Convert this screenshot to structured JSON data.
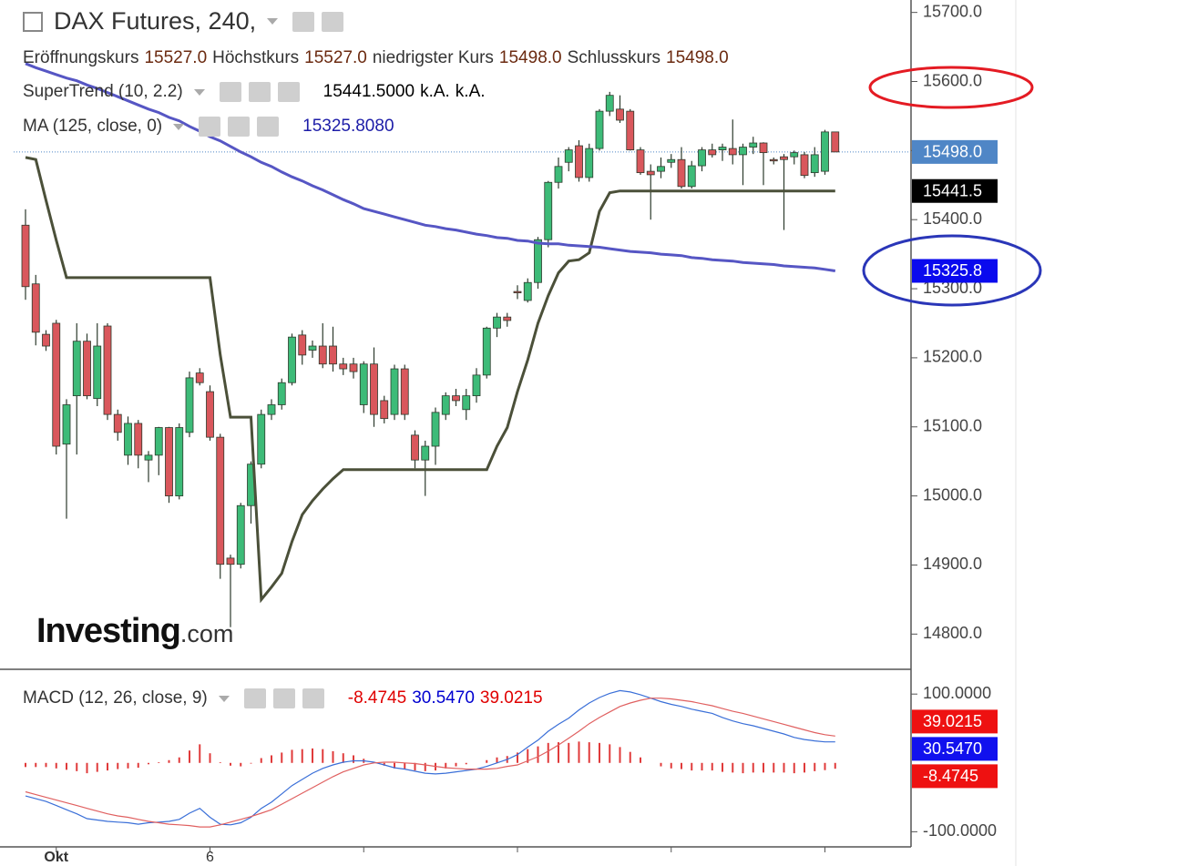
{
  "header": {
    "title": "DAX Futures, 240,",
    "ohlc": [
      {
        "label": "Eröffnungskurs",
        "value": "15527.0"
      },
      {
        "label": "Höchstkurs",
        "value": "15527.0"
      },
      {
        "label": "niedrigster Kurs",
        "value": "15498.0"
      },
      {
        "label": "Schlusskurs",
        "value": "15498.0"
      }
    ],
    "logo": {
      "name": "Investing",
      "suffix": ".com"
    }
  },
  "chart_data": [
    {
      "type": "candlestick",
      "up_color": "#3dbb78",
      "down_color": "#d9575c",
      "categories": [
        null,
        null,
        null,
        "Okt",
        null,
        null,
        null,
        null,
        null,
        null,
        null,
        null,
        null,
        null,
        null,
        null,
        null,
        null,
        "6",
        null,
        null,
        null,
        null,
        null,
        null,
        null,
        null,
        null,
        null,
        null,
        null,
        null,
        null,
        null,
        null,
        null,
        null,
        null,
        null,
        null,
        null,
        null,
        null,
        null,
        null,
        null,
        null,
        null,
        null,
        null,
        null,
        null,
        null,
        null,
        null,
        null,
        null,
        null,
        null,
        null,
        null,
        null,
        null,
        null,
        null,
        null,
        null,
        null,
        null,
        null,
        null,
        null,
        null,
        null,
        null,
        null,
        null,
        null,
        null,
        null
      ],
      "open": [
        15392,
        15307,
        15234,
        15250,
        15075,
        15145,
        15224,
        15141,
        15246,
        15118,
        15059,
        15105,
        15052,
        15059,
        15099,
        15000,
        15092,
        15178,
        15151,
        15085,
        14910,
        14901,
        14986,
        15046,
        15118,
        15132,
        15164,
        15233,
        15211,
        15217,
        15217,
        15191,
        15191,
        15132,
        15191,
        15138,
        15118,
        15184,
        15088,
        15052,
        15072,
        15118,
        15145,
        15125,
        15145,
        15175,
        15243,
        15259,
        15296,
        15283,
        15309,
        15371,
        15454,
        15483,
        15507,
        15461,
        15503,
        15557,
        15560,
        15557,
        15501,
        15470,
        15470,
        15483,
        15487,
        15448,
        15478,
        15501,
        15501,
        15503,
        15494,
        15505,
        15511,
        15487,
        15491,
        15491,
        15494,
        15468,
        15470,
        15527
      ],
      "high": [
        15415,
        15320,
        15240,
        15255,
        15140,
        15250,
        15235,
        15250,
        15250,
        15125,
        15115,
        15110,
        15065,
        15100,
        15100,
        15105,
        15180,
        15185,
        15160,
        15090,
        14915,
        14990,
        15050,
        15125,
        15140,
        15170,
        15235,
        15240,
        15225,
        15250,
        15245,
        15200,
        15200,
        15195,
        15215,
        15145,
        15190,
        15190,
        15095,
        15080,
        15128,
        15150,
        15155,
        15155,
        15185,
        15245,
        15265,
        15265,
        15305,
        15315,
        15375,
        15456,
        15490,
        15505,
        15515,
        15510,
        15560,
        15585,
        15580,
        15560,
        15505,
        15480,
        15490,
        15495,
        15505,
        15485,
        15505,
        15510,
        15510,
        15545,
        15510,
        15520,
        15512,
        15490,
        15495,
        15500,
        15498,
        15505,
        15530,
        15527
      ],
      "low": [
        15284,
        15218,
        15210,
        15060,
        14967,
        15060,
        15140,
        15130,
        15110,
        15080,
        15045,
        15040,
        15020,
        15030,
        14990,
        14995,
        15085,
        15160,
        15080,
        14880,
        14810,
        14895,
        14960,
        15040,
        15110,
        15125,
        15160,
        15190,
        15200,
        15185,
        15180,
        15175,
        15170,
        15120,
        15100,
        15105,
        15110,
        15110,
        15040,
        15000,
        15045,
        15110,
        15130,
        15110,
        15135,
        15170,
        15230,
        15245,
        15285,
        15280,
        15300,
        15360,
        15445,
        15470,
        15455,
        15455,
        15500,
        15550,
        15540,
        15500,
        15465,
        15400,
        15460,
        15475,
        15445,
        15445,
        15470,
        15490,
        15485,
        15480,
        15450,
        15495,
        15450,
        15480,
        15385,
        15480,
        15460,
        15462,
        15465,
        15498
      ],
      "close": [
        15303,
        15237,
        15217,
        15072,
        15132,
        15224,
        15145,
        15217,
        15118,
        15092,
        15105,
        15059,
        15059,
        15099,
        15000,
        15099,
        15171,
        15164,
        15085,
        14901,
        14901,
        14986,
        15046,
        15118,
        15132,
        15164,
        15230,
        15204,
        15217,
        15191,
        15191,
        15184,
        15180,
        15191,
        15118,
        15112,
        15184,
        15118,
        15052,
        15072,
        15121,
        15145,
        15138,
        15145,
        15175,
        15243,
        15259,
        15254,
        15294,
        15309,
        15371,
        15454,
        15477,
        15501,
        15461,
        15503,
        15557,
        15580,
        15544,
        15501,
        15468,
        15465,
        15477,
        15487,
        15448,
        15478,
        15501,
        15494,
        15505,
        15494,
        15505,
        15511,
        15497,
        15485,
        15487,
        15497,
        15464,
        15494,
        15527,
        15498
      ],
      "close_label": "15498.0",
      "close_label_color": "#4f86c6",
      "series": [
        {
          "name": "SuperTrend (10, 2.2)",
          "color": "#4b5039",
          "legend_values": [
            "15441.5000",
            "k.A.",
            "k.A."
          ],
          "legend_color": "#000000",
          "last_label": "15441.5",
          "label_color": "#000000",
          "values": [
            15490,
            15487,
            15428,
            15370,
            15316,
            15316,
            15316,
            15316,
            15316,
            15316,
            15316,
            15316,
            15316,
            15316,
            15316,
            15316,
            15316,
            15316,
            15316,
            15204,
            15114,
            15114,
            15114,
            14850,
            14868,
            14888,
            14934,
            14973,
            14993,
            15010,
            15025,
            15038,
            15038,
            15038,
            15038,
            15038,
            15038,
            15038,
            15038,
            15038,
            15038,
            15038,
            15038,
            15038,
            15038,
            15038,
            15072,
            15099,
            15151,
            15197,
            15250,
            15290,
            15323,
            15340,
            15342,
            15352,
            15412,
            15439,
            15441.5,
            15441.5,
            15441.5,
            15441.5,
            15441.5,
            15441.5,
            15441.5,
            15441.5,
            15441.5,
            15441.5,
            15441.5,
            15441.5,
            15441.5,
            15441.5,
            15441.5,
            15441.5,
            15441.5,
            15441.5,
            15441.5,
            15441.5,
            15441.5,
            15441.5
          ]
        },
        {
          "name": "MA (125, close, 0)",
          "color": "#5656c4",
          "legend_values": [
            "15325.8080"
          ],
          "legend_color": "#1c1ca8",
          "last_label": "15325.8",
          "label_color": "#0a0aee",
          "values": [
            15626,
            15620,
            15615,
            15610,
            15605,
            15601,
            15595,
            15590,
            15584,
            15578,
            15572,
            15566,
            15560,
            15555,
            15548,
            15543,
            15535,
            15528,
            15520,
            15514,
            15506,
            15498,
            15491,
            15483,
            15477,
            15469,
            15462,
            15456,
            15449,
            15443,
            15436,
            15429,
            15423,
            15416,
            15412,
            15408,
            15404,
            15400,
            15396,
            15392,
            15390,
            15387,
            15385,
            15382,
            15379,
            15377,
            15374,
            15373,
            15370,
            15369,
            15366,
            15365,
            15365,
            15363,
            15362,
            15361,
            15360,
            15358,
            15356,
            15354,
            15353,
            15352,
            15350,
            15349,
            15348,
            15345,
            15344,
            15342,
            15341,
            15340,
            15338,
            15337,
            15336,
            15335,
            15333,
            15332,
            15331,
            15330,
            15328,
            15325.808
          ]
        }
      ],
      "ylim": [
        14749,
        15718
      ],
      "yticks": [
        {
          "value": 14800,
          "label": "14800.0"
        },
        {
          "value": 14900,
          "label": "14900.0"
        },
        {
          "value": 15000,
          "label": "15000.0"
        },
        {
          "value": 15100,
          "label": "15100.0"
        },
        {
          "value": 15200,
          "label": "15200.0"
        },
        {
          "value": 15300,
          "label": "15300.0"
        },
        {
          "value": 15400,
          "label": "15400.0"
        },
        {
          "value": 15500,
          "label": "15500.0"
        },
        {
          "value": 15600,
          "label": "15600.0"
        },
        {
          "value": 15700,
          "label": "15700.0"
        }
      ]
    },
    {
      "type": "macd",
      "title": "MACD (12, 26, close, 9)",
      "series": [
        {
          "kind": "histogram",
          "color": "#e03a3a",
          "legend_value": "-8.4745",
          "legend_color": "#e00000",
          "last_label": "-8.4745",
          "label_color": "#ee1111",
          "values": [
            -6,
            -6,
            -6,
            -8,
            -10,
            -12,
            -15,
            -13,
            -11,
            -9,
            -8,
            -7,
            -2,
            1,
            4,
            8,
            18,
            27,
            14,
            1,
            -4,
            -5,
            -1,
            7,
            11,
            15,
            19,
            20,
            21,
            20,
            17,
            14,
            11,
            6,
            1,
            -4,
            -8,
            -9,
            -11,
            -12,
            -11,
            -8,
            -5,
            -2,
            0,
            4,
            8,
            10,
            15,
            20,
            24,
            29,
            30,
            29,
            31,
            30,
            29,
            27,
            23,
            16,
            8,
            0,
            -5,
            -8,
            -9,
            -11,
            -11,
            -11,
            -13,
            -14,
            -15,
            -14,
            -14,
            -14,
            -14,
            -15,
            -14,
            -12,
            -10.5,
            -8.4745
          ]
        },
        {
          "kind": "line",
          "color": "#3a6fd8",
          "legend_value": "30.5470",
          "legend_color": "#0000d0",
          "last_label": "30.5470",
          "label_color": "#1111ee",
          "values": [
            -48,
            -52,
            -56,
            -62,
            -68,
            -74,
            -81,
            -83,
            -85,
            -86,
            -87,
            -89,
            -87,
            -86,
            -85,
            -82,
            -73,
            -66,
            -79,
            -89,
            -90,
            -87,
            -79,
            -66,
            -57,
            -45,
            -33,
            -24,
            -15,
            -8,
            -3,
            1,
            3,
            3,
            1,
            -3,
            -7,
            -9,
            -12,
            -15,
            -16,
            -15,
            -13,
            -11,
            -9,
            -5,
            0,
            5,
            12,
            23,
            33,
            46,
            56,
            65,
            77,
            87,
            95,
            101,
            105,
            103,
            99,
            94,
            89,
            85,
            82,
            78,
            75,
            72,
            66,
            61,
            57,
            54,
            50,
            46,
            42,
            37,
            34,
            32,
            30.5,
            30.547
          ]
        },
        {
          "kind": "line",
          "color": "#e06060",
          "legend_value": "39.0215",
          "legend_color": "#e00000",
          "last_label": "39.0215",
          "label_color": "#ee1111",
          "values": [
            -42,
            -46,
            -50,
            -54,
            -58,
            -62,
            -66,
            -70,
            -74,
            -77,
            -79,
            -82,
            -85,
            -87,
            -89,
            -90,
            -91,
            -93,
            -93,
            -90,
            -86,
            -82,
            -78,
            -73,
            -68,
            -60,
            -52,
            -44,
            -36,
            -28,
            -20,
            -13,
            -8,
            -3,
            0,
            1,
            1,
            0,
            -1,
            -3,
            -5,
            -7,
            -8,
            -9,
            -9,
            -9,
            -8,
            -5,
            -3,
            3,
            9,
            17,
            26,
            36,
            46,
            57,
            66,
            74,
            82,
            87,
            91,
            94,
            94,
            93,
            91,
            89,
            86,
            83,
            79,
            75,
            72,
            68,
            64,
            60,
            56,
            52,
            48,
            44,
            41,
            39.0215
          ]
        }
      ],
      "ylim": [
        -122,
        132
      ],
      "yticks": [
        {
          "value": -100,
          "label": "-100.0000"
        },
        {
          "value": 100,
          "label": "100.0000"
        }
      ]
    }
  ]
}
